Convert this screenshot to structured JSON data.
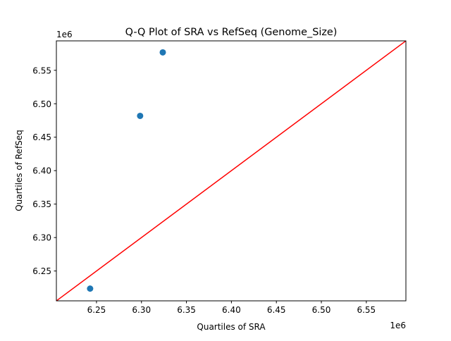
{
  "chart_data": {
    "type": "scatter",
    "title": "Q-Q Plot of SRA vs RefSeq (Genome_Size)",
    "xlabel": "Quartiles of SRA",
    "ylabel": "Quartiles of RefSeq",
    "x_offset_label": "1e6",
    "y_offset_label": "1e6",
    "xlim": [
      6.2054,
      6.594
    ],
    "ylim": [
      6.2054,
      6.594
    ],
    "x_ticks": [
      6.25,
      6.3,
      6.35,
      6.4,
      6.45,
      6.5,
      6.55
    ],
    "x_tick_labels": [
      "6.25",
      "6.30",
      "6.35",
      "6.40",
      "6.45",
      "6.50",
      "6.55"
    ],
    "y_ticks": [
      6.25,
      6.3,
      6.35,
      6.4,
      6.45,
      6.5,
      6.55
    ],
    "y_tick_labels": [
      "6.25",
      "6.30",
      "6.35",
      "6.40",
      "6.45",
      "6.50",
      "6.55"
    ],
    "points": {
      "x": [
        6.2429,
        6.2985,
        6.3237
      ],
      "y": [
        6.2237,
        6.4819,
        6.5768
      ]
    },
    "reference_line": {
      "type": "y=x"
    },
    "grid": false,
    "point_color": "#1f77b4",
    "line_color": "#ff0000"
  }
}
